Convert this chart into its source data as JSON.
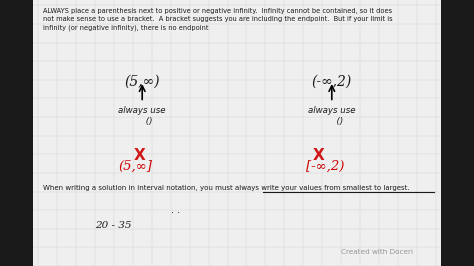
{
  "bg_color": "#2a2a2a",
  "panel_color": "#efefef",
  "border_color": "#888888",
  "text_color": "#1a1a1a",
  "red_color": "#cc0000",
  "main_text": "ALWAYS place a parenthesis next to positive or negative infinity.  Infinity cannot be contained, so it does\nnot make sense to use a bracket.  A bracket suggests you are including the endpoint.  But if your limit is\ninfinity (or negative infinity), there is no endpoint",
  "left_interval": "(5,∞)",
  "right_interval": "(-∞,2)",
  "wrong_left": "(5,∞]",
  "wrong_right": "[-∞,2)",
  "bottom_text": "When writing a solution in interval notation, you must always write your values from smallest to largest.",
  "handwritten_bottom": "20 - 35",
  "watermark": "Created with Doceri",
  "grid_color": "#cccccc",
  "left_border_color": "#1a1a1a",
  "right_border_color": "#1a1a1a"
}
